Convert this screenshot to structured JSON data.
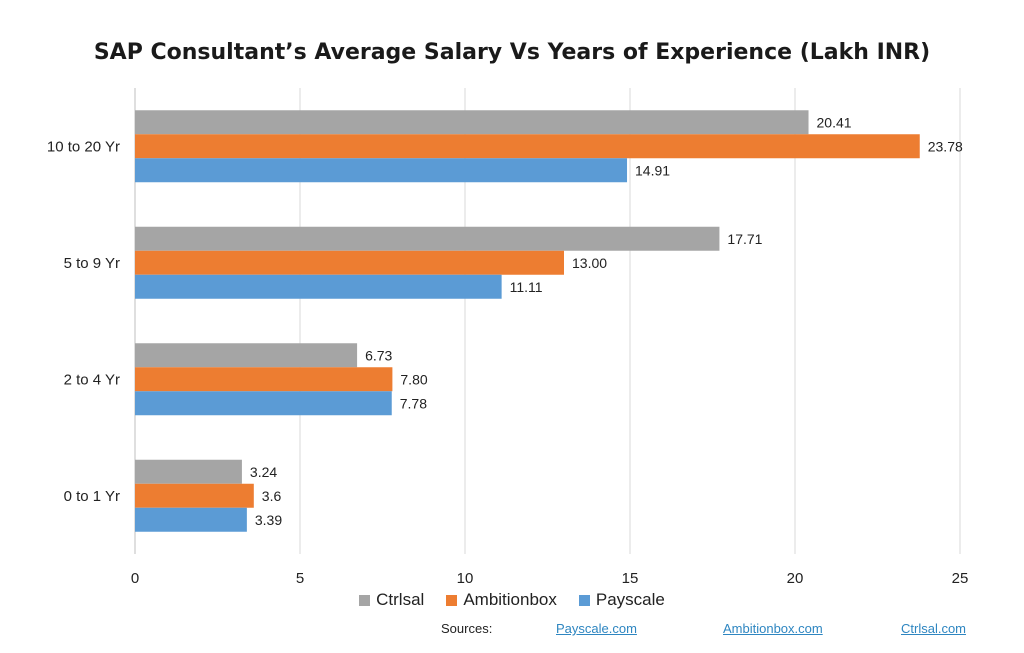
{
  "chart_data": {
    "type": "bar",
    "orientation": "horizontal",
    "title": "SAP Consultant’s Average Salary  Vs  Years of Experience (Lakh INR)",
    "categories": [
      "0 to 1 Yr",
      "2 to 4 Yr",
      "5 to 9 Yr",
      "10 to 20 Yr"
    ],
    "series": [
      {
        "name": "Ctrlsal",
        "color": "#a5a5a5",
        "values": [
          3.24,
          6.73,
          17.71,
          20.41
        ],
        "labels": [
          "3.24",
          "6.73",
          "17.71",
          "20.41"
        ]
      },
      {
        "name": "Ambitionbox",
        "color": "#ed7d31",
        "values": [
          3.6,
          7.8,
          13.0,
          23.78
        ],
        "labels": [
          "3.6",
          "7.80",
          "13.00",
          "23.78"
        ]
      },
      {
        "name": "Payscale",
        "color": "#5b9bd5",
        "values": [
          3.39,
          7.78,
          11.11,
          14.91
        ],
        "labels": [
          "3.39",
          "7.78",
          "11.11",
          "14.91"
        ]
      }
    ],
    "xlim": [
      0,
      25
    ],
    "xticks": [
      "0",
      "5",
      "10",
      "15",
      "20",
      "25"
    ],
    "grid": true,
    "legend_position": "bottom"
  },
  "sources": {
    "label": "Sources:",
    "links": [
      "Payscale.com",
      "Ambitionbox.com",
      "Ctrlsal.com"
    ]
  }
}
